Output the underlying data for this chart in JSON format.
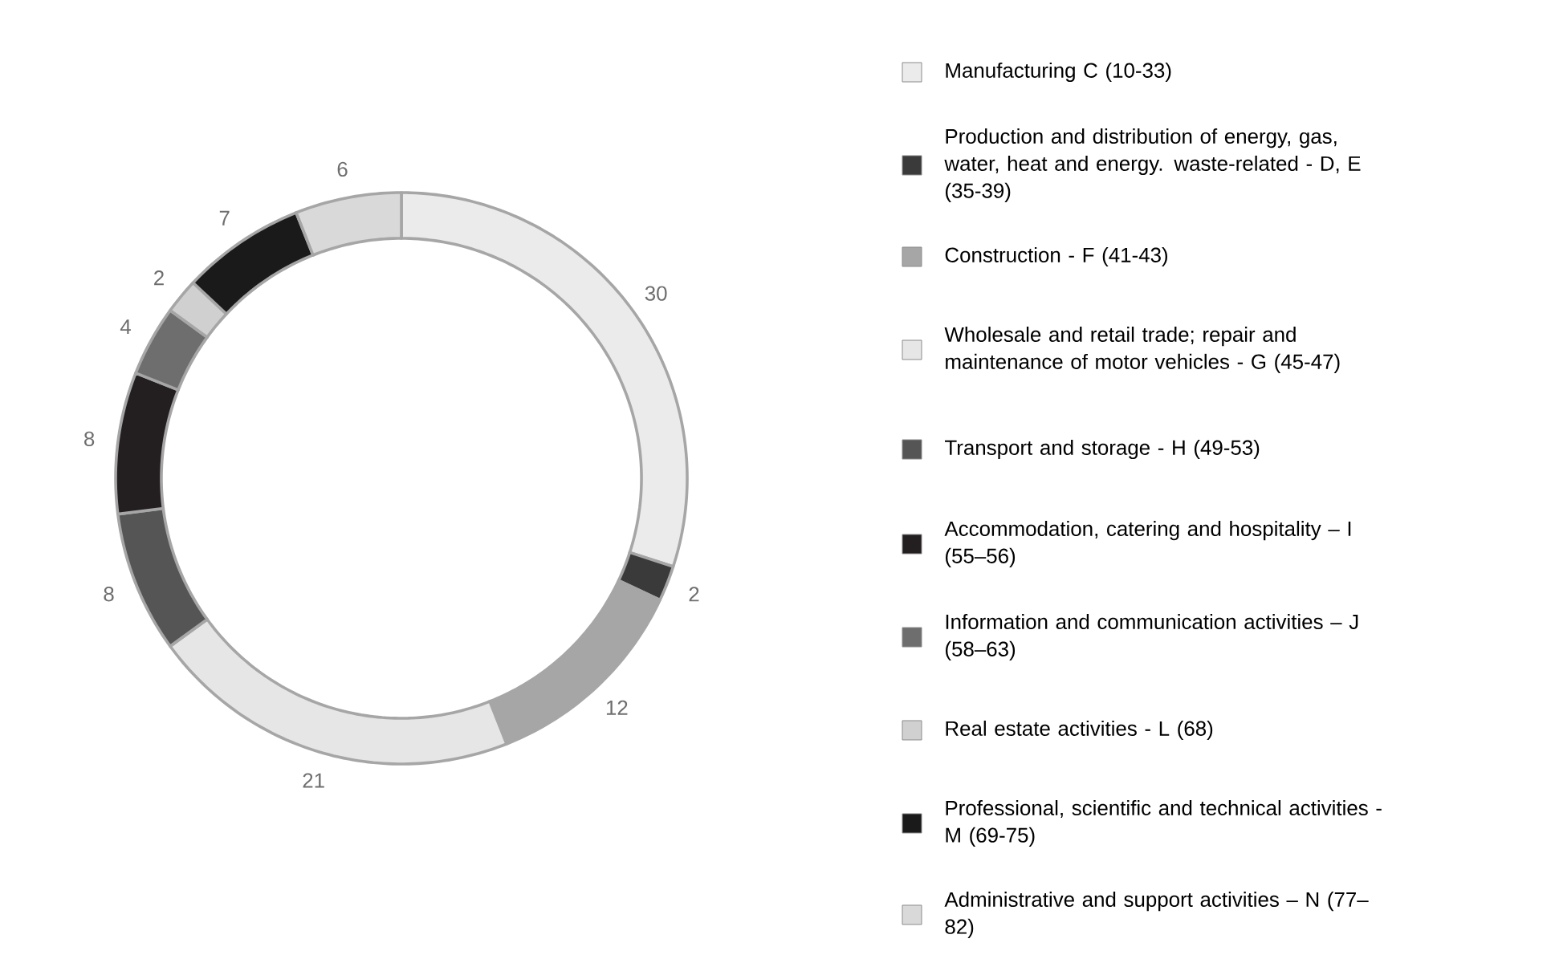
{
  "chart_data": {
    "type": "donut",
    "categories": [
      "Manufacturing C (10-33)",
      "Production and distribution of energy, gas, water, heat and energy. waste-related - D, E (35-39)",
      "Construction - F (41-43)",
      "Wholesale and retail trade; repair and maintenance of motor vehicles - G (45-47)",
      "Transport and storage - H (49-53)",
      "Accommodation, catering and hospitality – I (55–56)",
      "Information and communication activities – J (58–63)",
      "Real estate activities - L (68)",
      "Professional, scientific and technical activities - M (69-75)",
      "Administrative and support activities – N (77–82)"
    ],
    "values": [
      30,
      2,
      12,
      21,
      8,
      8,
      4,
      2,
      7,
      6
    ],
    "colors": [
      "#ebebeb",
      "#3a3a3a",
      "#a6a6a6",
      "#e6e6e6",
      "#555555",
      "#231f20",
      "#6e6e6e",
      "#d0d0d0",
      "#1a1a1a",
      "#d9d9d9"
    ],
    "data_labels": true,
    "legend": "right"
  }
}
